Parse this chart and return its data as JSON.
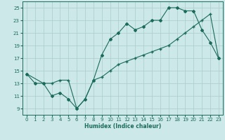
{
  "title": "",
  "xlabel": "Humidex (Indice chaleur)",
  "background_color": "#cce8e8",
  "grid_color": "#aacccc",
  "line_color": "#1a6b5a",
  "xlim": [
    -0.5,
    23.5
  ],
  "ylim": [
    8.0,
    26.0
  ],
  "xticks": [
    0,
    1,
    2,
    3,
    4,
    5,
    6,
    7,
    8,
    9,
    10,
    11,
    12,
    13,
    14,
    15,
    16,
    17,
    18,
    19,
    20,
    21,
    22,
    23
  ],
  "yticks": [
    9,
    11,
    13,
    15,
    17,
    19,
    21,
    23,
    25
  ],
  "line1_x": [
    0,
    1,
    2,
    3,
    4,
    5,
    6,
    7,
    8,
    9,
    10,
    11,
    12,
    13,
    14,
    15,
    16,
    17,
    18,
    19,
    20,
    21,
    22,
    23
  ],
  "line1_y": [
    14.5,
    13.0,
    13.0,
    11.0,
    11.5,
    10.5,
    9.0,
    10.5,
    13.5,
    17.5,
    20.0,
    21.0,
    22.5,
    21.5,
    22.0,
    23.0,
    23.0,
    25.0,
    25.0,
    24.5,
    24.5,
    21.5,
    19.5,
    17.0
  ],
  "line2_x": [
    0,
    2,
    3,
    4,
    5,
    6,
    7,
    8,
    9,
    10,
    11,
    12,
    13,
    14,
    15,
    16,
    17,
    18,
    19,
    20,
    21,
    22,
    23
  ],
  "line2_y": [
    14.5,
    13.0,
    13.0,
    13.5,
    13.5,
    9.0,
    10.5,
    13.5,
    14.0,
    15.0,
    16.0,
    16.5,
    17.0,
    17.5,
    18.0,
    18.5,
    19.0,
    20.0,
    21.0,
    22.0,
    23.0,
    24.0,
    17.0
  ],
  "marker1": "D",
  "marker2": "+",
  "markersize1": 2.0,
  "markersize2": 2.5,
  "linewidth": 0.8,
  "xlabel_fontsize": 5.5,
  "tick_fontsize": 5.0
}
